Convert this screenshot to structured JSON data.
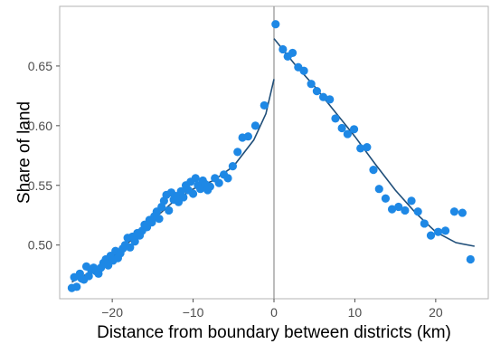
{
  "chart_data": {
    "type": "scatter",
    "xlabel": "Distance from boundary between districts (km)",
    "ylabel": "Share of land",
    "xlim": [
      -26.5,
      26.5
    ],
    "ylim": [
      0.455,
      0.7
    ],
    "x_ticks": [
      -20,
      -10,
      0,
      10,
      20
    ],
    "x_tick_labels": [
      "−20",
      "−10",
      "0",
      "10",
      "20"
    ],
    "y_ticks": [
      0.5,
      0.55,
      0.6,
      0.65
    ],
    "y_tick_labels": [
      "0.50",
      "0.55",
      "0.60",
      "0.65"
    ],
    "grid": false,
    "legend": "none",
    "boundary_line_x": 0,
    "colors": {
      "points": "#1e88e5",
      "fit": "#1f4e79",
      "boundary": "#999999",
      "frame": "#b3b3b3"
    },
    "series": [
      {
        "kind": "points",
        "x": [
          -25.0,
          -24.7,
          -24.4,
          -24.0,
          -23.8,
          -23.5,
          -23.2,
          -22.9,
          -22.6,
          -22.3,
          -22.0,
          -21.7,
          -21.4,
          -21.1,
          -20.8,
          -20.5,
          -20.2,
          -19.9,
          -19.6,
          -19.3,
          -19.0,
          -18.7,
          -18.4,
          -18.1,
          -17.8,
          -17.5,
          -17.2,
          -16.9,
          -16.6,
          -16.3,
          -16.0,
          -15.7,
          -15.4,
          -15.1,
          -14.8,
          -14.5,
          -14.2,
          -13.9,
          -13.6,
          -13.3,
          -13.0,
          -12.7,
          -12.4,
          -12.1,
          -11.8,
          -11.5,
          -11.2,
          -10.9,
          -10.6,
          -10.3,
          -10.0,
          -9.7,
          -9.4,
          -9.1,
          -8.8,
          -8.5,
          -8.2,
          -7.9,
          -7.3,
          -6.8,
          -6.2,
          -5.7,
          -5.1,
          -4.5,
          -3.9,
          -3.2,
          -2.3,
          -1.2,
          0.2,
          1.1,
          1.7,
          2.3,
          3.0,
          3.7,
          4.6,
          5.3,
          6.1,
          6.9,
          7.6,
          8.4,
          9.1,
          9.9,
          10.7,
          11.5,
          12.3,
          13.0,
          13.8,
          14.6,
          15.4,
          16.2,
          17.0,
          17.8,
          18.6,
          19.4,
          20.3,
          21.2,
          22.3,
          23.3,
          24.3
        ],
        "y": [
          0.464,
          0.473,
          0.465,
          0.476,
          0.472,
          0.471,
          0.482,
          0.474,
          0.479,
          0.481,
          0.478,
          0.476,
          0.481,
          0.485,
          0.488,
          0.483,
          0.491,
          0.487,
          0.495,
          0.489,
          0.493,
          0.497,
          0.5,
          0.506,
          0.498,
          0.507,
          0.503,
          0.51,
          0.508,
          0.512,
          0.517,
          0.515,
          0.521,
          0.519,
          0.524,
          0.528,
          0.522,
          0.532,
          0.537,
          0.542,
          0.529,
          0.544,
          0.538,
          0.541,
          0.536,
          0.545,
          0.54,
          0.55,
          0.546,
          0.553,
          0.543,
          0.556,
          0.55,
          0.547,
          0.554,
          0.551,
          0.546,
          0.549,
          0.556,
          0.552,
          0.559,
          0.556,
          0.566,
          0.578,
          0.59,
          0.591,
          0.6,
          0.617,
          0.685,
          0.664,
          0.658,
          0.661,
          0.649,
          0.646,
          0.635,
          0.629,
          0.624,
          0.622,
          0.606,
          0.598,
          0.593,
          0.597,
          0.581,
          0.582,
          0.563,
          0.547,
          0.539,
          0.53,
          0.532,
          0.529,
          0.537,
          0.528,
          0.518,
          0.508,
          0.511,
          0.512,
          0.528,
          0.527,
          0.488
        ]
      },
      {
        "kind": "fit",
        "segment": "left",
        "x": [
          -25.0,
          -22.5,
          -20.0,
          -17.5,
          -15.0,
          -12.5,
          -10.0,
          -7.5,
          -5.0,
          -2.5,
          -1.0,
          0.0
        ],
        "y": [
          0.469,
          0.478,
          0.49,
          0.505,
          0.521,
          0.536,
          0.547,
          0.554,
          0.566,
          0.588,
          0.61,
          0.639
        ]
      },
      {
        "kind": "fit",
        "segment": "right",
        "x": [
          0.0,
          2.5,
          5.0,
          7.5,
          10.0,
          12.5,
          15.0,
          17.5,
          20.0,
          22.5,
          24.8
        ],
        "y": [
          0.673,
          0.652,
          0.633,
          0.612,
          0.591,
          0.568,
          0.546,
          0.527,
          0.511,
          0.502,
          0.499
        ]
      }
    ]
  }
}
